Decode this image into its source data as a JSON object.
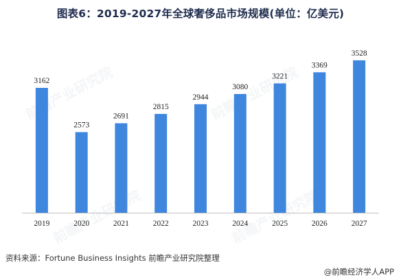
{
  "title": "图表6：2019-2027年全球奢侈品市场规模(单位：亿美元)",
  "source": "资料来源：Fortune Business Insights 前瞻产业研究院整理",
  "credit": "@前瞻经济学人APP",
  "watermark": "前瞻产业研究院",
  "colors": {
    "bar": "#3f86df",
    "axis": "#bfbfbf"
  },
  "chart_data": {
    "type": "bar",
    "categories": [
      "2019",
      "2020",
      "2021",
      "2022",
      "2023",
      "2024",
      "2025",
      "2026",
      "2027"
    ],
    "values": [
      3162,
      2573,
      2691,
      2815,
      2944,
      3080,
      3221,
      3369,
      3528
    ],
    "title": "图表6：2019-2027年全球奢侈品市场规模(单位：亿美元)",
    "xlabel": "",
    "ylabel": "",
    "ylim": [
      1500,
      3600
    ],
    "grid": false,
    "data_labels": true
  }
}
